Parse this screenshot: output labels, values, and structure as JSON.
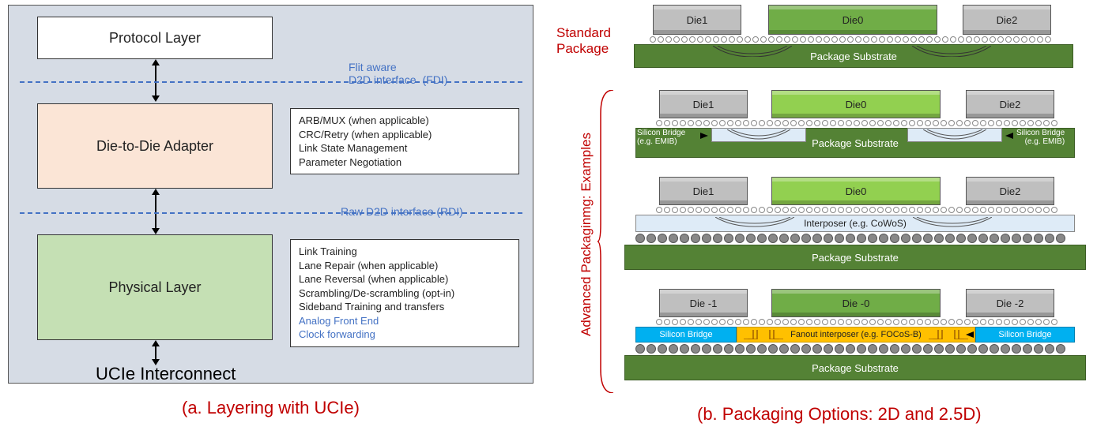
{
  "left": {
    "bg_color": "#d6dce5",
    "layers": {
      "protocol": {
        "label": "Protocol Layer",
        "bg": "#ffffff"
      },
      "adapter": {
        "label": "Die-to-Die Adapter",
        "bg": "#fbe5d6"
      },
      "physical": {
        "label": "Physical Layer",
        "bg": "#c5e0b4"
      }
    },
    "interfaces": {
      "fdi_top": "Flit aware",
      "fdi_bottom": "D2D interface",
      "fdi_paren": "(FDI)",
      "rdi": "Raw D2D interface (RDI)"
    },
    "adapter_desc": [
      "ARB/MUX (when applicable)",
      "CRC/Retry (when applicable)",
      "Link State Management",
      "Parameter Negotiation"
    ],
    "physical_desc": [
      "Link Training",
      "Lane Repair (when applicable)",
      "Lane Reversal (when applicable)",
      "Scrambling/De-scrambling (opt-in)",
      "Sideband Training and transfers"
    ],
    "physical_desc_blue": [
      "Analog Front End",
      "Clock forwarding"
    ],
    "bottom": "UCIe Interconnect",
    "caption": "(a. Layering with UCIe)"
  },
  "right": {
    "standard_label_top": "Standard",
    "standard_label_bottom": "Package",
    "advanced_label": "Advanced Packaginmg: Examples",
    "dies": {
      "d1": "Die1",
      "d0": "Die0",
      "d2": "Die2",
      "d1b": "Die -1",
      "d0b": "Die -0",
      "d2b": "Die -2"
    },
    "substrate": "Package Substrate",
    "silicon_bridge": "Silicon Bridge",
    "silicon_bridge_sub": "(e.g. EMIB)",
    "interposer": "Interposer (e.g. CoWoS)",
    "fanout": "Fanout interposer (e.g. FOCoS-B)",
    "caption": "(b. Packaging Options: 2D and 2.5D)",
    "colors": {
      "die_gray": "#bfbfbf",
      "die_green": "#70ad47",
      "die_lightgreen": "#92d050",
      "substrate": "#548235",
      "interposer": "#deebf7",
      "bridge_cyan": "#00b0f0",
      "fanout_yellow": "#ffc000"
    }
  }
}
